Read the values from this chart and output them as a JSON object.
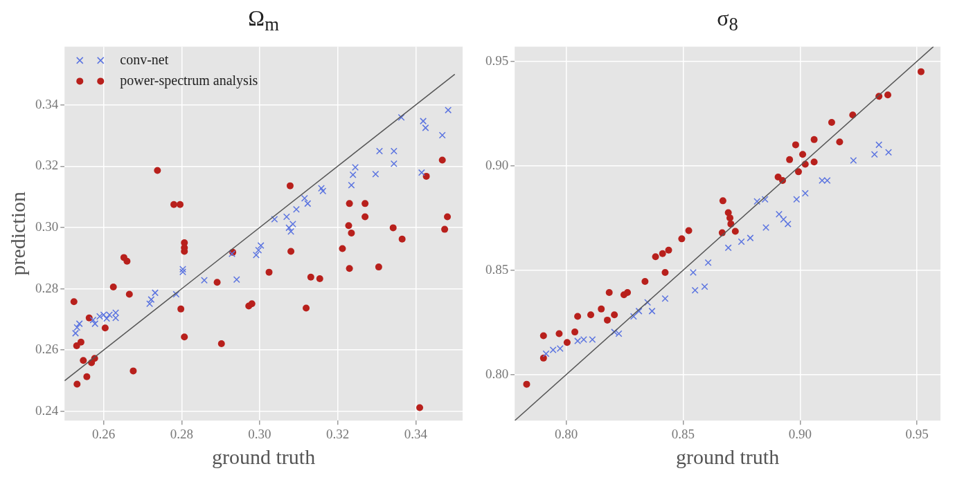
{
  "chart_data": [
    {
      "type": "scatter",
      "title": "Ω$_{m}$",
      "xlabel": "ground truth",
      "ylabel": "prediction",
      "xlim": [
        0.25,
        0.352
      ],
      "ylim": [
        0.237,
        0.359
      ],
      "xticks": [
        0.26,
        0.28,
        {
          "value": 0.3,
          "label": "0.30"
        },
        0.32,
        0.34
      ],
      "yticks": [
        0.24,
        0.26,
        0.28,
        {
          "value": 0.3,
          "label": "0.30"
        },
        0.32,
        0.34
      ],
      "grid": true,
      "legend": "top left",
      "series": [
        {
          "name": "conv-net",
          "color": "#5b74e0",
          "marker": "cross",
          "x": [
            0.2528,
            0.2532,
            0.2538,
            0.2573,
            0.2578,
            0.259,
            0.26,
            0.2608,
            0.2615,
            0.2631,
            0.2631,
            0.2718,
            0.2722,
            0.2732,
            0.2786,
            0.2803,
            0.2803,
            0.2858,
            0.2941,
            0.2929,
            0.2991,
            0.2997,
            0.3003,
            0.3038,
            0.3069,
            0.3075,
            0.308,
            0.3085,
            0.3094,
            0.3115,
            0.3123,
            0.3162,
            0.3158,
            0.3235,
            0.3239,
            0.3245,
            0.3297,
            0.3307,
            0.3344,
            0.3344,
            0.3363,
            0.3419,
            0.3425,
            0.3415,
            0.3468,
            0.3483
          ],
          "values": [
            0.2655,
            0.2674,
            0.2686,
            0.2698,
            0.2686,
            0.271,
            0.2715,
            0.2703,
            0.2715,
            0.2722,
            0.2705,
            0.2751,
            0.2765,
            0.2787,
            0.2782,
            0.2864,
            0.2855,
            0.2828,
            0.283,
            0.2914,
            0.291,
            0.2926,
            0.2941,
            0.3027,
            0.3035,
            0.2999,
            0.2987,
            0.3011,
            0.3059,
            0.3095,
            0.3078,
            0.3119,
            0.3128,
            0.3138,
            0.3172,
            0.3196,
            0.3174,
            0.3249,
            0.3249,
            0.3208,
            0.3359,
            0.3347,
            0.3325,
            0.3179,
            0.3301,
            0.3383
          ]
        },
        {
          "name": "power-spectrum analysis",
          "color": "#b8201c",
          "marker": "circle",
          "x": [
            0.2524,
            0.2531,
            0.2542,
            0.2532,
            0.2548,
            0.2557,
            0.2563,
            0.2569,
            0.2577,
            0.2604,
            0.2625,
            0.2652,
            0.266,
            0.2666,
            0.2676,
            0.2738,
            0.278,
            0.2796,
            0.2807,
            0.2807,
            0.2807,
            0.2798,
            0.2807,
            0.2902,
            0.2891,
            0.2931,
            0.2972,
            0.298,
            0.3024,
            0.3078,
            0.308,
            0.3119,
            0.3131,
            0.3154,
            0.3212,
            0.3228,
            0.323,
            0.3235,
            0.323,
            0.327,
            0.327,
            0.3305,
            0.3342,
            0.3365,
            0.3427,
            0.3468,
            0.3481,
            0.3474,
            0.341
          ],
          "values": [
            0.2758,
            0.2614,
            0.2626,
            0.2489,
            0.2566,
            0.2513,
            0.2705,
            0.2559,
            0.2573,
            0.2672,
            0.2806,
            0.2902,
            0.289,
            0.2782,
            0.2532,
            0.3186,
            0.3075,
            0.3075,
            0.295,
            0.2934,
            0.2922,
            0.2734,
            0.2643,
            0.2621,
            0.2821,
            0.2919,
            0.2744,
            0.2751,
            0.2854,
            0.3136,
            0.2922,
            0.2737,
            0.2838,
            0.2833,
            0.2931,
            0.3006,
            0.3078,
            0.2982,
            0.2866,
            0.3078,
            0.3035,
            0.2871,
            0.2999,
            0.2962,
            0.3167,
            0.322,
            0.3035,
            0.2994,
            0.2412
          ]
        },
        {
          "type": "line",
          "color": "#555555",
          "marker": "none",
          "x": [
            0.25,
            0.35
          ],
          "values": [
            0.25,
            0.35
          ]
        }
      ]
    },
    {
      "type": "scatter",
      "title": "σ$_{8}$",
      "xlabel": "ground truth",
      "xlim": [
        0.778,
        0.96
      ],
      "ylim": [
        0.778,
        0.957
      ],
      "xticks": [
        {
          "value": 0.8,
          "label": "0.80"
        },
        0.85,
        {
          "value": 0.9,
          "label": "0.90"
        },
        0.95
      ],
      "yticks": [
        {
          "value": 0.8,
          "label": "0.80"
        },
        0.85,
        {
          "value": 0.9,
          "label": "0.90"
        },
        0.95
      ],
      "grid": true,
      "series": [
        {
          "color": "#5b74e0",
          "marker": "cross",
          "x": [
            0.7914,
            0.7944,
            0.7974,
            0.8049,
            0.8075,
            0.8112,
            0.8206,
            0.8225,
            0.8288,
            0.8311,
            0.8348,
            0.8367,
            0.8423,
            0.8543,
            0.8551,
            0.8592,
            0.8607,
            0.8693,
            0.8749,
            0.8787,
            0.8816,
            0.885,
            0.8854,
            0.891,
            0.8929,
            0.8948,
            0.8985,
            0.9022,
            0.9094,
            0.9116,
            0.9228,
            0.9318,
            0.9337,
            0.9378
          ],
          "values": [
            0.81,
            0.8118,
            0.8125,
            0.8161,
            0.8168,
            0.8168,
            0.8204,
            0.8196,
            0.8279,
            0.8304,
            0.8346,
            0.8304,
            0.8364,
            0.8489,
            0.8404,
            0.8421,
            0.8536,
            0.8607,
            0.8636,
            0.8654,
            0.8829,
            0.8839,
            0.8704,
            0.8768,
            0.8743,
            0.8721,
            0.8839,
            0.8868,
            0.8929,
            0.8929,
            0.9025,
            0.9054,
            0.91,
            0.9064
          ]
        },
        {
          "color": "#b8201c",
          "marker": "circle",
          "x": [
            0.7831,
            0.7903,
            0.7903,
            0.797,
            0.8004,
            0.8026,
            0.8037,
            0.8049,
            0.8105,
            0.815,
            0.8176,
            0.8206,
            0.8184,
            0.8247,
            0.8262,
            0.8337,
            0.8382,
            0.8412,
            0.8438,
            0.8423,
            0.8494,
            0.8524,
            0.867,
            0.8693,
            0.87,
            0.8704,
            0.8667,
            0.8723,
            0.8906,
            0.8925,
            0.8955,
            0.8981,
            0.8993,
            0.9011,
            0.9022,
            0.906,
            0.906,
            0.9135,
            0.9169,
            0.9225,
            0.9337,
            0.9375,
            0.9517
          ],
          "values": [
            0.7954,
            0.8186,
            0.8079,
            0.8196,
            0.8154,
            null,
            0.8204,
            0.8279,
            0.8286,
            0.8314,
            0.8261,
            0.8286,
            0.8393,
            0.8382,
            0.8393,
            0.8446,
            0.8564,
            0.8579,
            0.8596,
            0.8489,
            0.865,
            0.8689,
            0.8832,
            0.8775,
            0.875,
            0.8721,
            0.8679,
            0.8686,
            0.8946,
            0.8929,
            0.9029,
            0.91,
            0.8971,
            0.9054,
            0.9007,
            0.9018,
            0.9125,
            0.9207,
            0.9114,
            0.9243,
            0.9332,
            0.9339,
            0.945
          ]
        },
        {
          "type": "line",
          "color": "#555555",
          "marker": "none",
          "x": [
            0.778,
            0.957
          ],
          "values": [
            0.778,
            0.957
          ]
        }
      ]
    }
  ]
}
